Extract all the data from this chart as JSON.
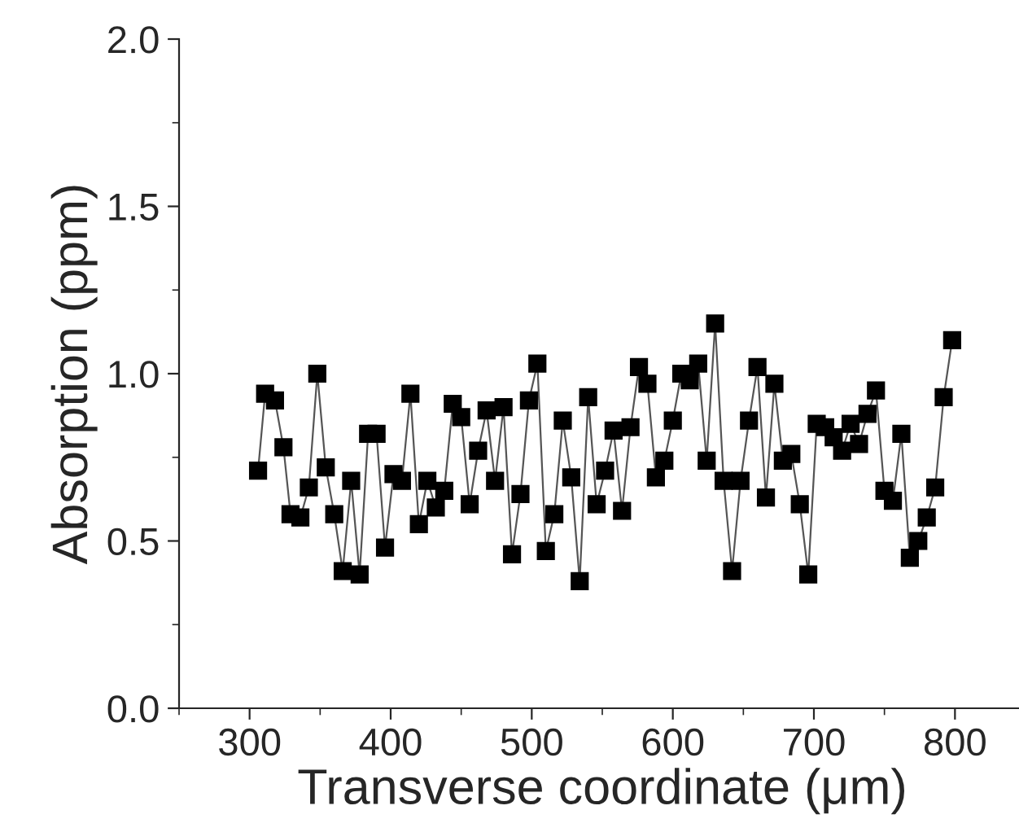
{
  "chart_data": {
    "type": "line",
    "xlabel": "Transverse coordinate (μm)",
    "ylabel": "Absorption (ppm)",
    "xlim": [
      250,
      850
    ],
    "xticks": [
      300,
      400,
      500,
      600,
      700,
      800
    ],
    "ylim": [
      0,
      2.0
    ],
    "yticks": [
      {
        "value": 0,
        "label": "0.0"
      },
      {
        "value": 0.5,
        "label": "0.5"
      },
      {
        "value": 1.0,
        "label": "1.0"
      },
      {
        "value": 1.5,
        "label": "1.5"
      },
      {
        "value": 2.0,
        "label": "2.0"
      }
    ],
    "marker": "square",
    "line_style": "solid",
    "grid": false,
    "legend": false,
    "series": [
      {
        "color": "#000000",
        "x": [
          306,
          311,
          318,
          324,
          329,
          336,
          342,
          348,
          354,
          360,
          366,
          372,
          378,
          384,
          390,
          396,
          402,
          408,
          414,
          420,
          426,
          432,
          438,
          444,
          450,
          456,
          462,
          468,
          474,
          480,
          486,
          492,
          498,
          504,
          510,
          516,
          522,
          528,
          534,
          540,
          546,
          552,
          558,
          564,
          570,
          576,
          582,
          588,
          594,
          600,
          606,
          612,
          618,
          624,
          630,
          636,
          642,
          648,
          654,
          660,
          666,
          672,
          678,
          684,
          690,
          696,
          702,
          708,
          714,
          720,
          726,
          732,
          738,
          744,
          750,
          756,
          762,
          768,
          774,
          780,
          786,
          792,
          798
        ],
        "values": [
          0.71,
          0.94,
          0.92,
          0.78,
          0.58,
          0.57,
          0.66,
          1.0,
          0.72,
          0.58,
          0.41,
          0.68,
          0.4,
          0.82,
          0.82,
          0.48,
          0.7,
          0.68,
          0.94,
          0.55,
          0.68,
          0.6,
          0.65,
          0.91,
          0.87,
          0.61,
          0.77,
          0.89,
          0.68,
          0.9,
          0.46,
          0.64,
          0.92,
          1.03,
          0.47,
          0.58,
          0.86,
          0.69,
          0.38,
          0.93,
          0.61,
          0.71,
          0.83,
          0.59,
          0.84,
          1.02,
          0.97,
          0.69,
          0.74,
          0.86,
          1.0,
          0.98,
          1.03,
          0.74,
          1.15,
          0.68,
          0.41,
          0.68,
          0.86,
          1.02,
          0.63,
          0.97,
          0.74,
          0.76,
          0.61,
          0.4,
          0.85,
          0.84,
          0.81,
          0.77,
          0.85,
          0.79,
          0.88,
          0.95,
          0.65,
          0.62,
          0.82,
          0.45,
          0.5,
          0.57,
          0.66,
          0.93,
          1.1
        ]
      }
    ]
  }
}
